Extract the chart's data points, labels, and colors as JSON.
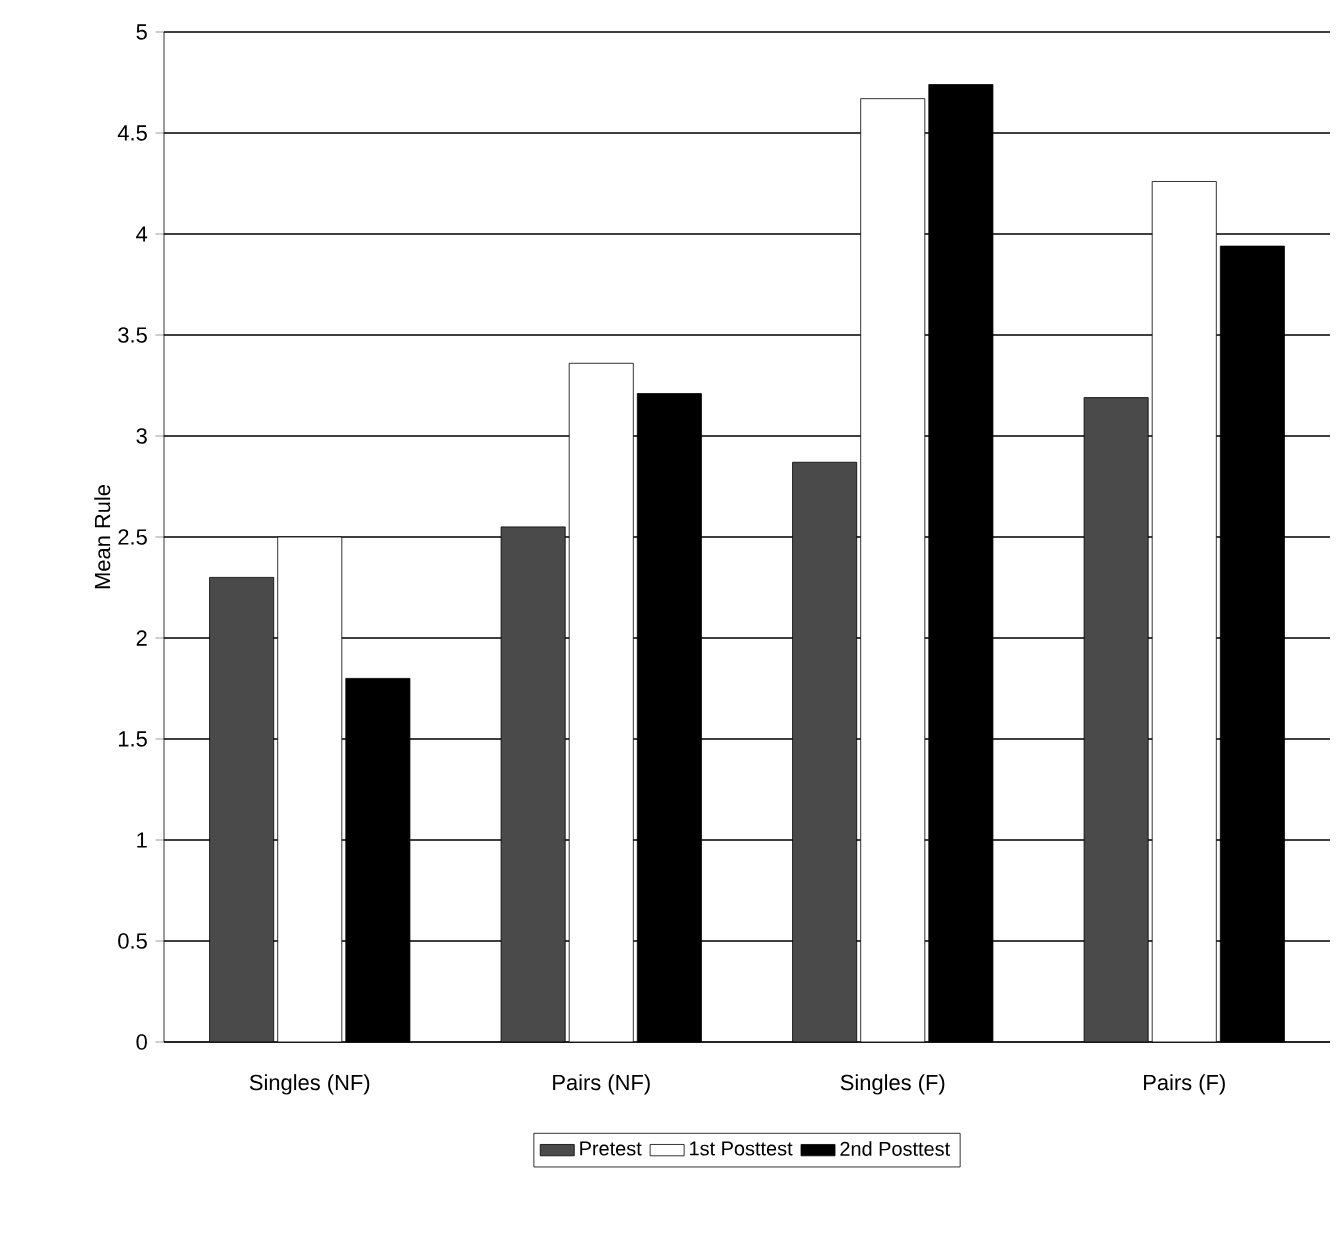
{
  "chart_data": {
    "type": "bar",
    "ylabel": "Mean Rule",
    "categories": [
      "Singles (NF)",
      "Pairs (NF)",
      "Singles (F)",
      "Pairs (F)"
    ],
    "series": [
      {
        "name": "Pretest",
        "color": "#4a4a4a",
        "values": [
          2.3,
          2.55,
          2.87,
          3.19
        ]
      },
      {
        "name": "1st Posttest",
        "color": "#ffffff",
        "values": [
          2.5,
          3.36,
          4.67,
          4.26
        ]
      },
      {
        "name": "2nd Posttest",
        "color": "#000000",
        "values": [
          1.8,
          3.21,
          4.74,
          3.94
        ]
      }
    ],
    "ylim": [
      0,
      5
    ],
    "yticks": [
      0,
      0.5,
      1,
      1.5,
      2,
      2.5,
      3,
      3.5,
      4,
      4.5,
      5
    ],
    "grid": "y",
    "legend": "bottom"
  }
}
